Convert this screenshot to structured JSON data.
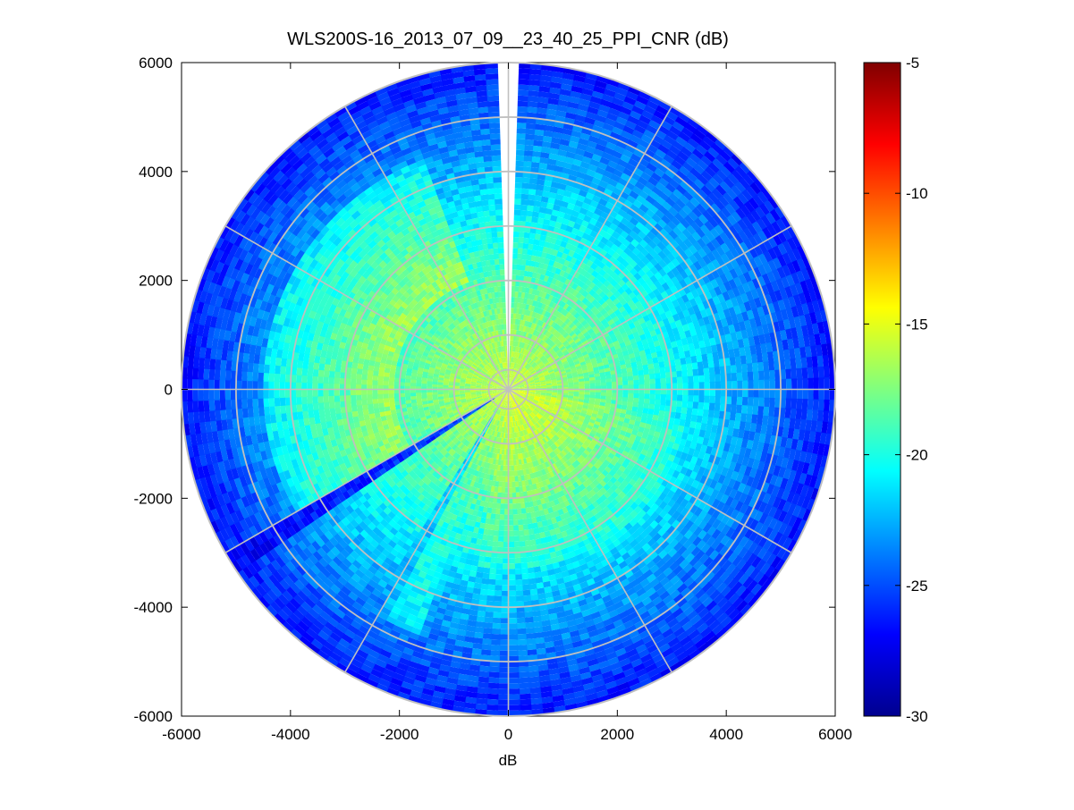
{
  "chart_data": {
    "type": "heatmap",
    "subtype": "polar-ppi",
    "title": "WLS200S-16_2013_07_09__23_40_25_PPI_CNR (dB)",
    "xlabel": "dB",
    "ylabel": "",
    "xlim": [
      -6000,
      6000
    ],
    "ylim": [
      -6000,
      6000
    ],
    "xticks": [
      -6000,
      -4000,
      -2000,
      0,
      2000,
      4000,
      6000
    ],
    "yticks": [
      6000,
      4000,
      2000,
      0,
      -2000,
      -4000,
      -6000
    ],
    "max_range": 6000,
    "range_rings": [
      1000,
      2000,
      3000,
      4000,
      5000
    ],
    "radial_line_angles_deg": [
      0,
      30,
      60,
      90,
      120,
      150,
      180,
      210,
      240,
      270,
      300,
      330
    ],
    "grid": true,
    "colorbar": {
      "label": "",
      "range": [
        -30,
        -5
      ],
      "ticks": [
        -5,
        -10,
        -15,
        -20,
        -25,
        -30
      ],
      "colormap": "jet",
      "placement": "right"
    },
    "field_model": {
      "center_value_db": -16,
      "edge_value_db": -26.5,
      "gap_bearing_deg": 0,
      "gap_width_deg": 3.5,
      "low_wedges": [
        {
          "bearing_deg": 238,
          "width_deg": 3,
          "value_db": -27
        },
        {
          "bearing_deg": 210,
          "width_deg": 6,
          "value_db": -23
        }
      ],
      "high_wedge": {
        "bearing_deg": 205,
        "width_deg": 12,
        "value_db": -18
      }
    },
    "colors": {
      "grid": "#c0c0c0",
      "gap": "#ffffff"
    }
  }
}
